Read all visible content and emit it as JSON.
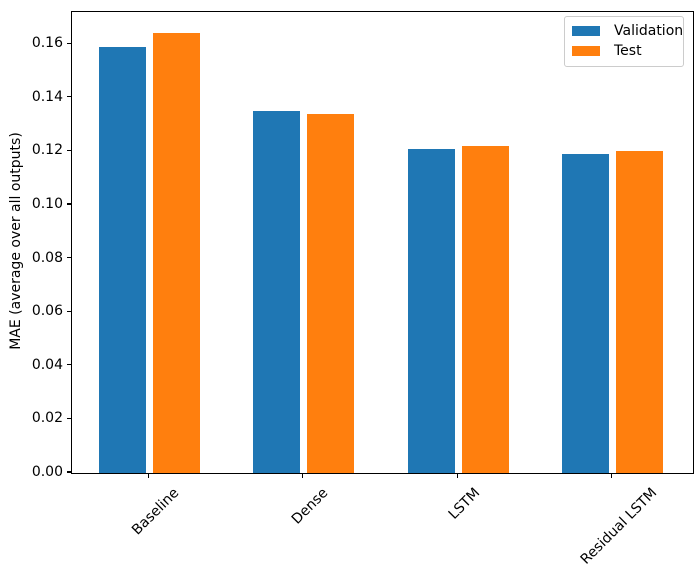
{
  "figure": {
    "background": "#ffffff",
    "axis_color": "#000000"
  },
  "chart_data": {
    "type": "bar",
    "title": "",
    "xlabel": "",
    "ylabel": "MAE (average over all outputs)",
    "categories": [
      "Baseline",
      "Dense",
      "LSTM",
      "Residual LSTM"
    ],
    "series": [
      {
        "name": "Validation",
        "color": "#1f77b4",
        "values": [
          0.159,
          0.135,
          0.121,
          0.119
        ]
      },
      {
        "name": "Test",
        "color": "#ff7f0e",
        "values": [
          0.164,
          0.134,
          0.122,
          0.12
        ]
      }
    ],
    "ylim": [
      0,
      0.172
    ],
    "yticks": [
      0.0,
      0.02,
      0.04,
      0.06,
      0.08,
      0.1,
      0.12,
      0.14,
      0.16
    ],
    "ytick_labels": [
      "0.00",
      "0.02",
      "0.04",
      "0.06",
      "0.08",
      "0.10",
      "0.12",
      "0.14",
      "0.16"
    ],
    "xtick_rotation_deg": 45,
    "grid": false,
    "legend": {
      "position": "upper right",
      "entries": [
        "Validation",
        "Test"
      ]
    }
  }
}
